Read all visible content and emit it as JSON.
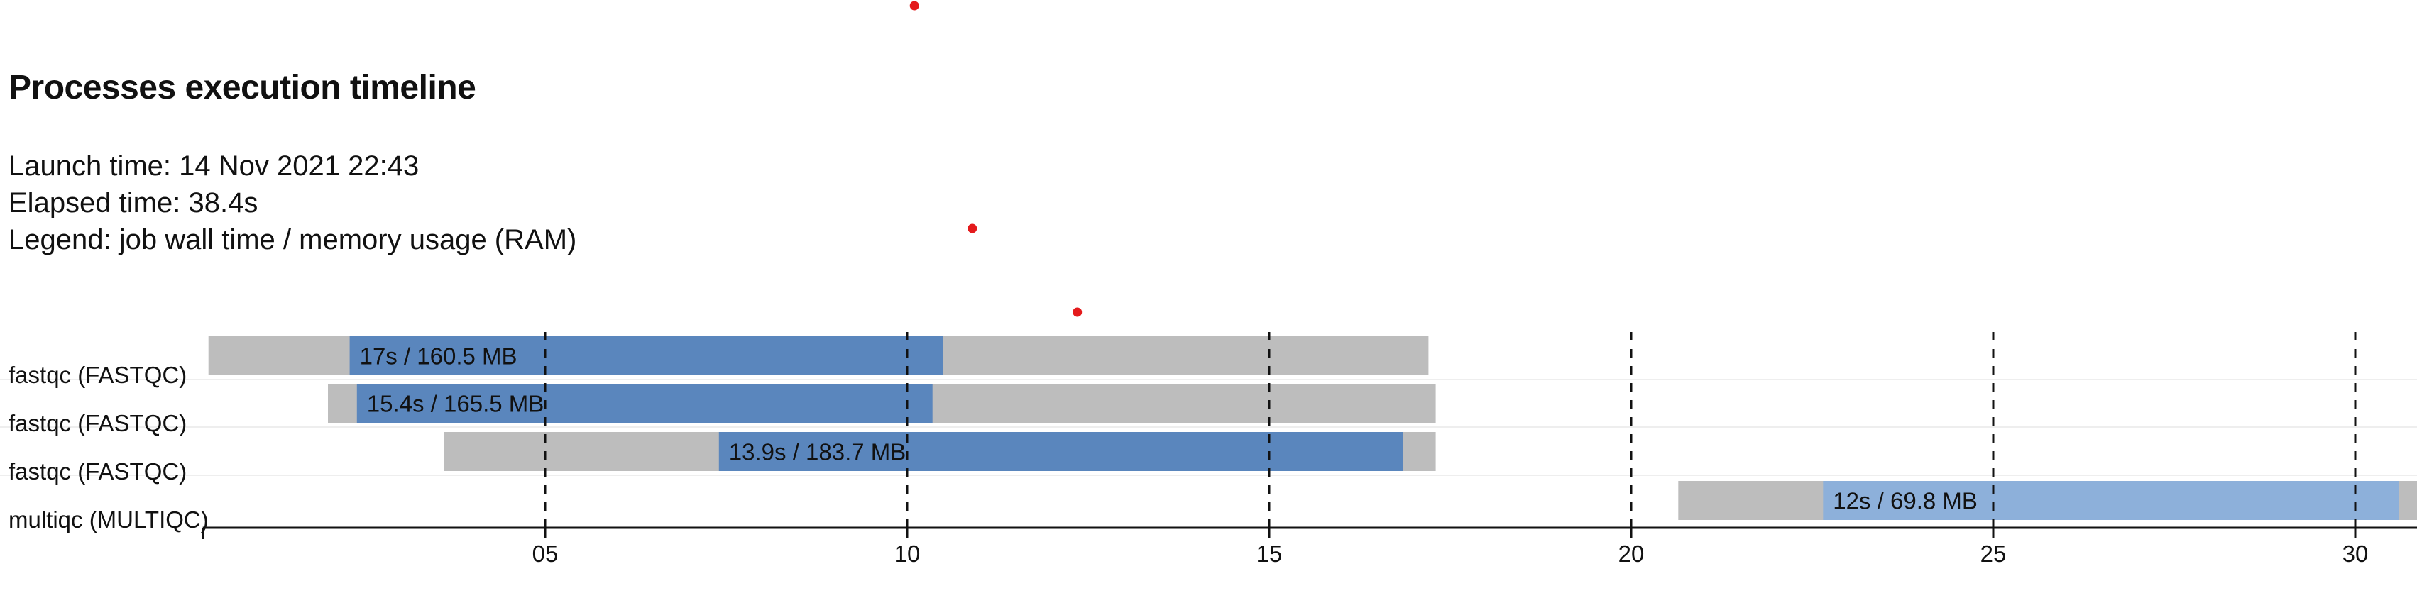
{
  "header": {
    "title": "Processes execution timeline",
    "launch_label": "Launch time:",
    "launch_value": "14 Nov 2021 22:43",
    "elapsed_label": "Elapsed time:",
    "elapsed_value": "38.4s",
    "legend_label": "Legend:",
    "legend_value": "job wall time / memory usage (RAM)"
  },
  "colors": {
    "submitted_bar": "#bdbdbd",
    "running_bar": "#5a86bd",
    "running_bar_light": "#8db0da",
    "grid_line": "#111111",
    "row_separator": "#eeeeee",
    "axis": "#111111",
    "marker": "#e41a1c"
  },
  "chart_data": {
    "type": "timeline",
    "xlabel": "",
    "ylabel": "",
    "x_unit": "seconds",
    "xlim": [
      0.35,
      30.9
    ],
    "x_ticks": [
      5,
      10,
      15,
      20,
      25,
      30
    ],
    "x_tick_labels": [
      "05",
      "10",
      "15",
      "20",
      "25",
      "30"
    ],
    "grid": "vertical dashed at ticks",
    "rows": [
      {
        "label": "fastqc (FASTQC)",
        "submit_start": 0.35,
        "run_start": 2.3,
        "run_end": 10.5,
        "submit_end": 17.2,
        "bar_label": "17s / 160.5 MB",
        "color": "running_bar"
      },
      {
        "label": "fastqc (FASTQC)",
        "submit_start": 2.0,
        "run_start": 2.4,
        "run_end": 10.35,
        "submit_end": 17.3,
        "bar_label": "15.4s / 165.5 MB",
        "color": "running_bar"
      },
      {
        "label": "fastqc (FASTQC)",
        "submit_start": 3.6,
        "run_start": 7.4,
        "run_end": 16.85,
        "submit_end": 17.3,
        "bar_label": "13.9s / 183.7 MB",
        "color": "running_bar"
      },
      {
        "label": "multiqc (MULTIQC)",
        "submit_start": 20.65,
        "run_start": 22.65,
        "run_end": 30.6,
        "submit_end": 30.9,
        "bar_label": "12s / 69.8 MB",
        "color": "running_bar_light"
      }
    ],
    "markers": [
      {
        "x": 10.1
      },
      {
        "x": 10.9
      },
      {
        "x": 12.35
      }
    ]
  }
}
